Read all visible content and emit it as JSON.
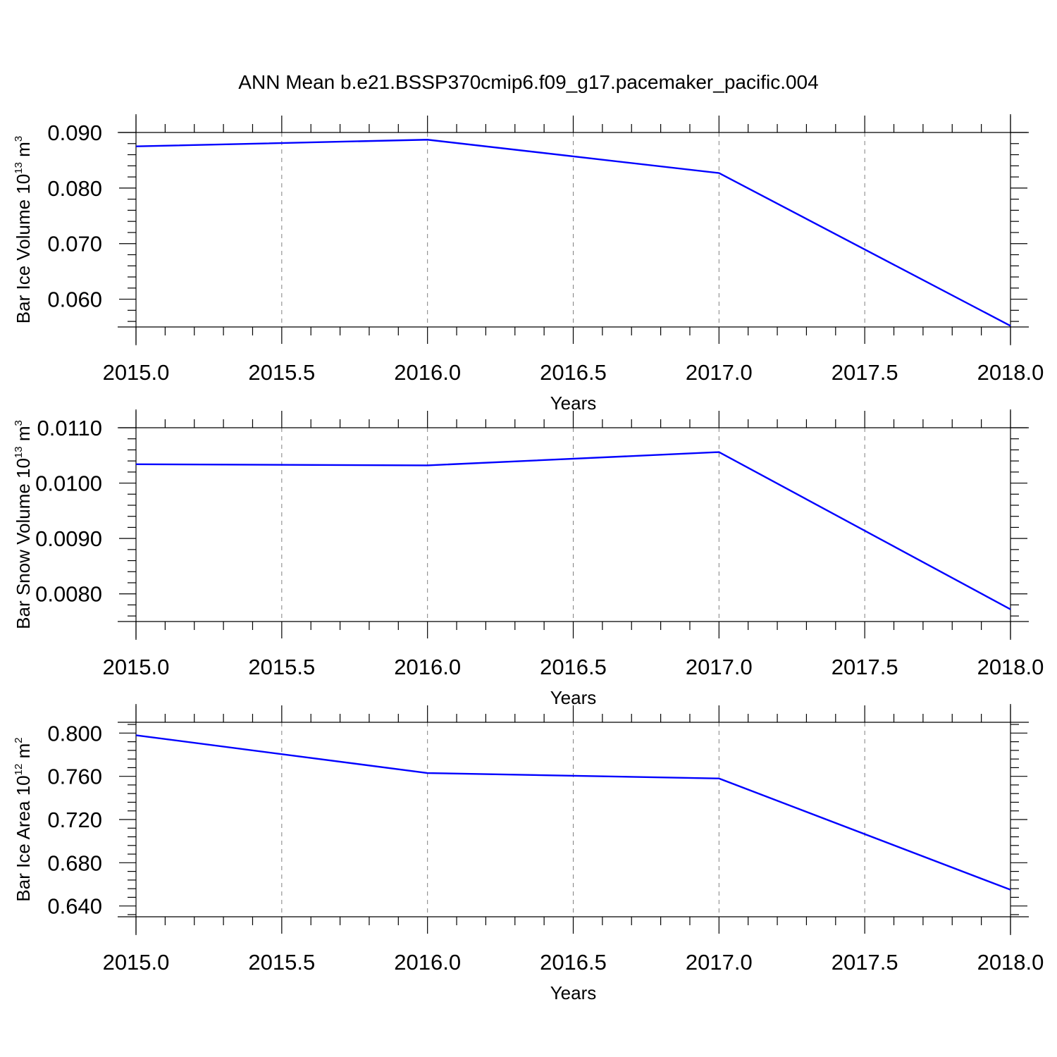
{
  "title": "ANN Mean b.e21.BSSP370cmip6.f09_g17.pacemaker_pacific.004",
  "colors": {
    "line": "#0000ff",
    "axis": "#000000",
    "grid": "#808080"
  },
  "chart_data": [
    {
      "type": "line",
      "xlabel": "Years",
      "ylabel_main": "Bar Ice Volume 10",
      "ylabel_exp": "13",
      "ylabel_unit": "m",
      "ylabel_unit_exp": "3",
      "x": [
        2015.0,
        2016.0,
        2017.0,
        2018.0
      ],
      "series": [
        {
          "values": [
            0.0875,
            0.0887,
            0.0827,
            0.0552
          ]
        }
      ],
      "xlim": [
        2015.0,
        2018.0
      ],
      "ylim": [
        0.055,
        0.09
      ],
      "xticks": [
        "2015.0",
        "2015.5",
        "2016.0",
        "2016.5",
        "2017.0",
        "2017.5",
        "2018.0"
      ],
      "xtick_values": [
        2015.0,
        2015.5,
        2016.0,
        2016.5,
        2017.0,
        2017.5,
        2018.0
      ],
      "yticks": [
        "0.060",
        "0.070",
        "0.080",
        "0.090"
      ],
      "ytick_values": [
        0.06,
        0.07,
        0.08,
        0.09
      ],
      "yminor_step": 0.002,
      "grid": "vertical-dashed"
    },
    {
      "type": "line",
      "xlabel": "Years",
      "ylabel_main": "Bar Snow Volume 10",
      "ylabel_exp": "13",
      "ylabel_unit": "m",
      "ylabel_unit_exp": "3",
      "x": [
        2015.0,
        2016.0,
        2017.0,
        2018.0
      ],
      "series": [
        {
          "values": [
            0.01034,
            0.01032,
            0.01056,
            0.00772
          ]
        }
      ],
      "xlim": [
        2015.0,
        2018.0
      ],
      "ylim": [
        0.0075,
        0.011
      ],
      "xticks": [
        "2015.0",
        "2015.5",
        "2016.0",
        "2016.5",
        "2017.0",
        "2017.5",
        "2018.0"
      ],
      "xtick_values": [
        2015.0,
        2015.5,
        2016.0,
        2016.5,
        2017.0,
        2017.5,
        2018.0
      ],
      "yticks": [
        "0.0080",
        "0.0090",
        "0.0100",
        "0.0110"
      ],
      "ytick_values": [
        0.008,
        0.009,
        0.01,
        0.011
      ],
      "yminor_step": 0.0002,
      "grid": "vertical-dashed"
    },
    {
      "type": "line",
      "xlabel": "Years",
      "ylabel_main": "Bar Ice Area 10",
      "ylabel_exp": "12",
      "ylabel_unit": "m",
      "ylabel_unit_exp": "2",
      "x": [
        2015.0,
        2016.0,
        2017.0,
        2018.0
      ],
      "series": [
        {
          "values": [
            0.798,
            0.763,
            0.758,
            0.655
          ]
        }
      ],
      "xlim": [
        2015.0,
        2018.0
      ],
      "ylim": [
        0.63,
        0.81
      ],
      "xticks": [
        "2015.0",
        "2015.5",
        "2016.0",
        "2016.5",
        "2017.0",
        "2017.5",
        "2018.0"
      ],
      "xtick_values": [
        2015.0,
        2015.5,
        2016.0,
        2016.5,
        2017.0,
        2017.5,
        2018.0
      ],
      "yticks": [
        "0.640",
        "0.680",
        "0.720",
        "0.760",
        "0.800"
      ],
      "ytick_values": [
        0.64,
        0.68,
        0.72,
        0.76,
        0.8
      ],
      "yminor_step": 0.008,
      "grid": "vertical-dashed"
    }
  ]
}
